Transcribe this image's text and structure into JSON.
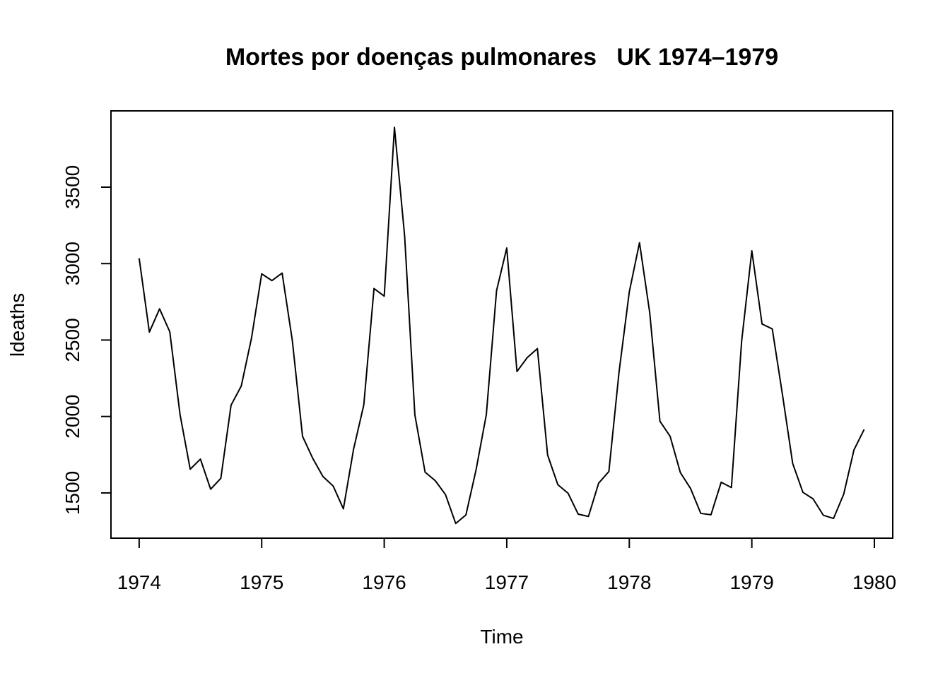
{
  "chart_data": {
    "type": "line",
    "title": "Mortes por doenças pulmonares   UK 1974–1979",
    "xlabel": "Time",
    "ylabel": "ldeaths",
    "xlim": [
      1973.77,
      1980.15
    ],
    "ylim": [
      1204,
      3999
    ],
    "x_ticks": [
      1974,
      1975,
      1976,
      1977,
      1978,
      1979,
      1980
    ],
    "y_ticks": [
      1500,
      2000,
      2500,
      3000,
      3500
    ],
    "grid": false,
    "line_color": "#000000",
    "series": [
      {
        "start": 1974,
        "frequency": 12,
        "values": [
          3035,
          2552,
          2704,
          2554,
          2014,
          1655,
          1721,
          1524,
          1596,
          2074,
          2199,
          2512,
          2933,
          2889,
          2938,
          2497,
          1870,
          1726,
          1607,
          1545,
          1396,
          1787,
          2076,
          2837,
          2787,
          3891,
          3179,
          2011,
          1636,
          1580,
          1489,
          1300,
          1356,
          1653,
          2013,
          2823,
          3102,
          2294,
          2385,
          2444,
          1748,
          1554,
          1498,
          1361,
          1346,
          1564,
          1640,
          2293,
          2815,
          3137,
          2679,
          1969,
          1870,
          1633,
          1529,
          1366,
          1357,
          1570,
          1535,
          2491,
          3084,
          2605,
          2573,
          2143,
          1693,
          1504,
          1461,
          1354,
          1333,
          1492,
          1781,
          1915
        ]
      }
    ]
  }
}
